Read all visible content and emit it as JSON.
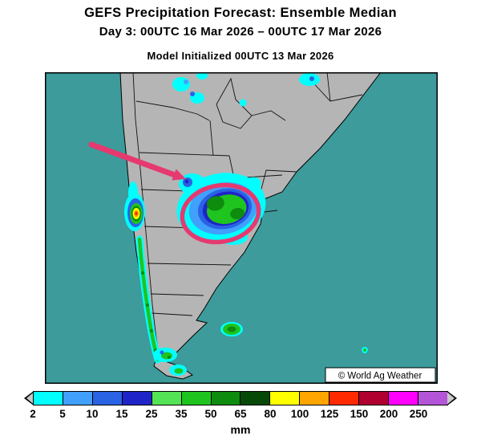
{
  "header": {
    "title": "GEFS Precipitation Forecast: Ensemble Median",
    "subtitle": "Day 3: 00UTC 16 Mar 2026 – 00UTC 17 Mar 2026",
    "init_line": "Model Initialized 00UTC 13 Mar 2026"
  },
  "map": {
    "watermark": "© World Ag Weather",
    "ocean_color": "#3d9b9b",
    "land_color": "#b5b5b5",
    "border_color": "#000000"
  },
  "annotation": {
    "color": "#e6396f",
    "meaning": "pink arrow and ellipse highlighting rain area in central Argentina"
  },
  "legend": {
    "unit": "mm",
    "labels": [
      "2",
      "5",
      "10",
      "15",
      "25",
      "35",
      "50",
      "65",
      "80",
      "100",
      "125",
      "150",
      "200",
      "250"
    ],
    "colors": [
      "#00ffff",
      "#41a0fb",
      "#2a62e4",
      "#1f24c8",
      "#54e354",
      "#1fc41f",
      "#0e8c0e",
      "#064806",
      "#ffff00",
      "#ffa500",
      "#ff2a00",
      "#b00030",
      "#ff00ff",
      "#b455d8"
    ],
    "cap_color": "#c9c9c9"
  }
}
